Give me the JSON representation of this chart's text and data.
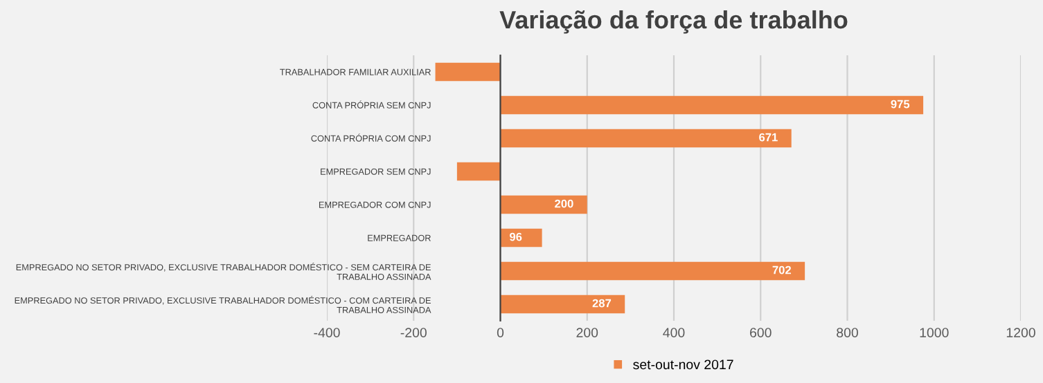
{
  "chart_data": {
    "type": "bar",
    "orientation": "horizontal",
    "title": "Variação da força de trabalho",
    "categories": [
      "TRABALHADOR FAMILIAR AUXILIAR",
      "CONTA PRÓPRIA SEM CNPJ",
      "CONTA PRÓPRIA COM CNPJ",
      "EMPREGADOR SEM CNPJ",
      "EMPREGADOR COM CNPJ",
      "EMPREGADOR",
      "EMPREGADO NO SETOR PRIVADO, EXCLUSIVE TRABALHADOR DOMÉSTICO - SEM CARTEIRA DE\nTRABALHO ASSINADA",
      "EMPREGADO NO SETOR PRIVADO, EXCLUSIVE TRABALHADOR DOMÉSTICO - COM CARTEIRA DE\nTRABALHO ASSINADA"
    ],
    "series": [
      {
        "name": "set-out-nov 2017",
        "color": "#ed8546",
        "values": [
          -150,
          975,
          671,
          -100,
          200,
          96,
          702,
          287
        ],
        "value_labels": [
          null,
          "975",
          "671",
          null,
          "200",
          "96",
          "702",
          "287"
        ]
      }
    ],
    "xlim": [
      -400,
      1200
    ],
    "xticks": [
      -400,
      -200,
      0,
      200,
      400,
      600,
      800,
      1000,
      1200
    ],
    "grid": "x",
    "legend": "bottom"
  }
}
